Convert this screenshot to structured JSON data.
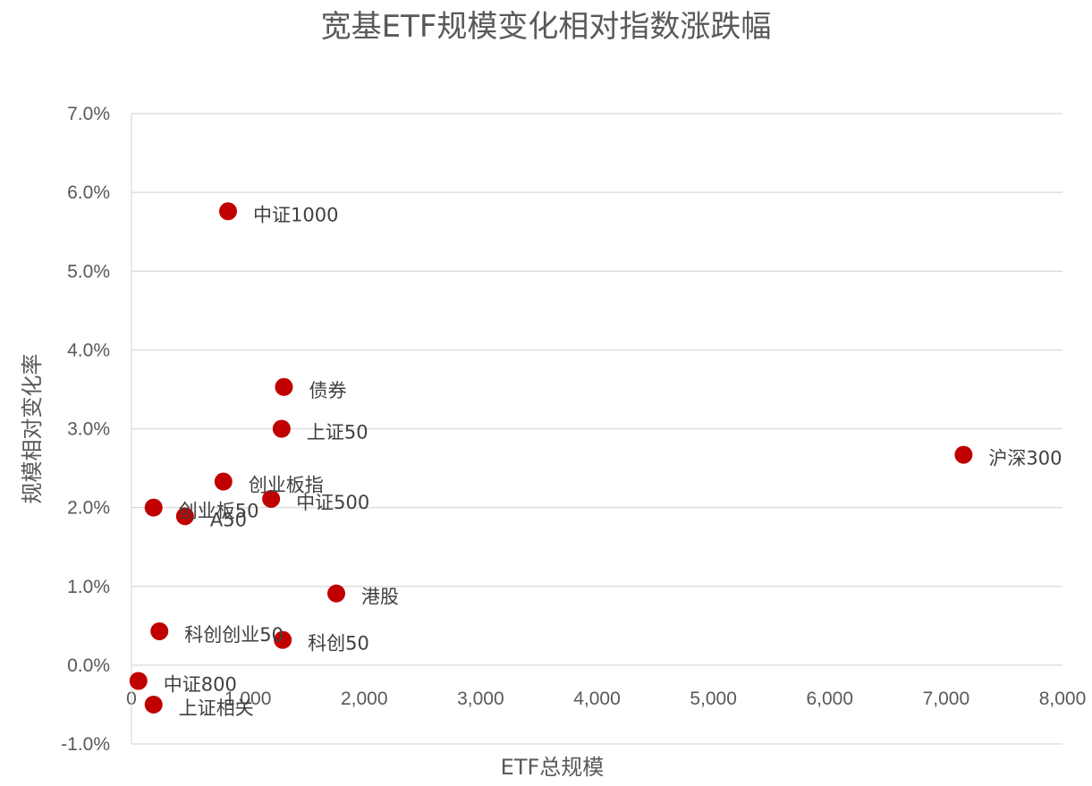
{
  "chart_data": {
    "type": "scatter",
    "title": "宽基ETF规模变化相对指数涨跌幅",
    "xlabel": "ETF总规模",
    "ylabel": "规模相对变化率",
    "xlim": [
      0,
      8000
    ],
    "ylim": [
      -1.0,
      7.0
    ],
    "x_ticks": [
      "0",
      "1,000",
      "2,000",
      "3,000",
      "4,000",
      "5,000",
      "6,000",
      "7,000",
      "8,000"
    ],
    "y_ticks": [
      "-1.0%",
      "0.0%",
      "1.0%",
      "2.0%",
      "3.0%",
      "4.0%",
      "5.0%",
      "6.0%",
      "7.0%"
    ],
    "grid": "horizontal",
    "marker_color": "#c00000",
    "points": [
      {
        "label": "中证1000",
        "x": 830,
        "y": 5.76
      },
      {
        "label": "债券",
        "x": 1310,
        "y": 3.53
      },
      {
        "label": "上证50",
        "x": 1290,
        "y": 3.0
      },
      {
        "label": "沪深300",
        "x": 7150,
        "y": 2.67
      },
      {
        "label": "创业板指",
        "x": 790,
        "y": 2.33
      },
      {
        "label": "中证500",
        "x": 1200,
        "y": 2.11
      },
      {
        "label": "创业板50",
        "x": 190,
        "y": 2.0
      },
      {
        "label": "A50",
        "x": 460,
        "y": 1.89
      },
      {
        "label": "港股",
        "x": 1760,
        "y": 0.91
      },
      {
        "label": "科创创业50",
        "x": 240,
        "y": 0.43
      },
      {
        "label": "科创50",
        "x": 1300,
        "y": 0.32
      },
      {
        "label": "中证800",
        "x": 60,
        "y": -0.2
      },
      {
        "label": "上证相关",
        "x": 190,
        "y": -0.5
      }
    ]
  }
}
